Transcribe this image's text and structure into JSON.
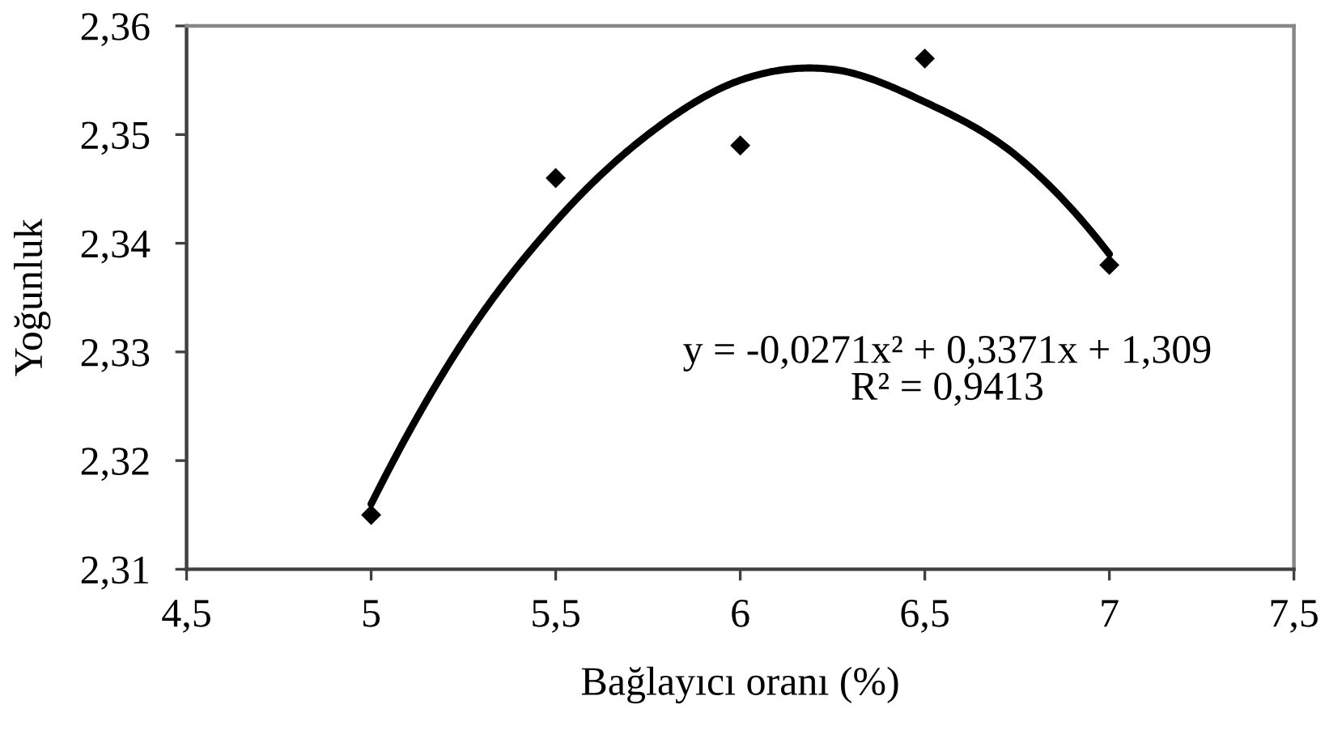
{
  "chart_data": {
    "type": "scatter",
    "xlabel": "Bağlayıcı oranı (%)",
    "ylabel": "Yoğunluk",
    "xlim": [
      4.5,
      7.5
    ],
    "xticks": [
      {
        "value": 4.5,
        "label": "4,5"
      },
      5,
      {
        "value": 5.5,
        "label": "5,5"
      },
      6,
      {
        "value": 6.5,
        "label": "6,5"
      },
      7,
      {
        "value": 7.5,
        "label": "7,5"
      }
    ],
    "ylim": [
      2.31,
      2.36
    ],
    "yticks": [
      {
        "value": 2.31,
        "label": "2,31"
      },
      {
        "value": 2.32,
        "label": "2,32"
      },
      {
        "value": 2.33,
        "label": "2,33"
      },
      {
        "value": 2.34,
        "label": "2,34"
      },
      {
        "value": 2.35,
        "label": "2,35"
      },
      {
        "value": 2.36,
        "label": "2,36"
      }
    ],
    "series": [
      {
        "type": "line",
        "color": "#000000",
        "marker": "none",
        "line_style": "solid",
        "x": [
          5,
          5.25,
          5.5,
          5.75,
          6,
          6.25,
          6.5,
          6.75,
          7
        ],
        "values": [
          2.316,
          2.331,
          2.342,
          2.35,
          2.355,
          2.356,
          2.353,
          2.348,
          2.339
        ]
      },
      {
        "color": "#000000",
        "marker": "diamond",
        "x": [
          5,
          5.5,
          6,
          6.5,
          7
        ],
        "values": [
          2.315,
          2.346,
          2.349,
          2.357,
          2.338
        ]
      }
    ],
    "annotations": [
      "y = -0,0271x² + 0,3371x + 1,309\nR² = 0,9413"
    ],
    "grid": false
  }
}
